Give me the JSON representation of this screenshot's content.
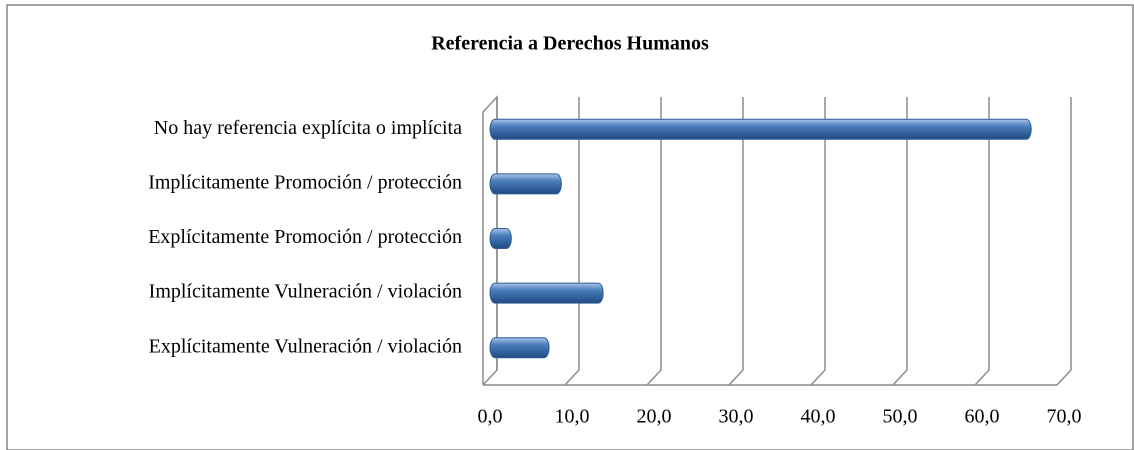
{
  "chart_data": {
    "type": "bar",
    "orientation": "horizontal",
    "title": "Referencia a Derechos Humanos",
    "categories": [
      "No hay referencia explícita o implícita",
      "Implícitamente Promoción / protección",
      "Explícitamente Promoción / protección",
      "Implícitamente Vulneración / violación",
      "Explícitamente Vulneración / violación"
    ],
    "values": [
      66.0,
      8.7,
      2.6,
      13.8,
      7.2
    ],
    "color": "#4a7ebb",
    "xlim": [
      0,
      70
    ],
    "xticks": [
      {
        "value": 0,
        "label": "0,0"
      },
      {
        "value": 10,
        "label": "10,0"
      },
      {
        "value": 20,
        "label": "20,0"
      },
      {
        "value": 30,
        "label": "30,0"
      },
      {
        "value": 40,
        "label": "40,0"
      },
      {
        "value": 50,
        "label": "50,0"
      },
      {
        "value": 60,
        "label": "60,0"
      },
      {
        "value": 70,
        "label": "70,0"
      }
    ],
    "grid": true
  }
}
